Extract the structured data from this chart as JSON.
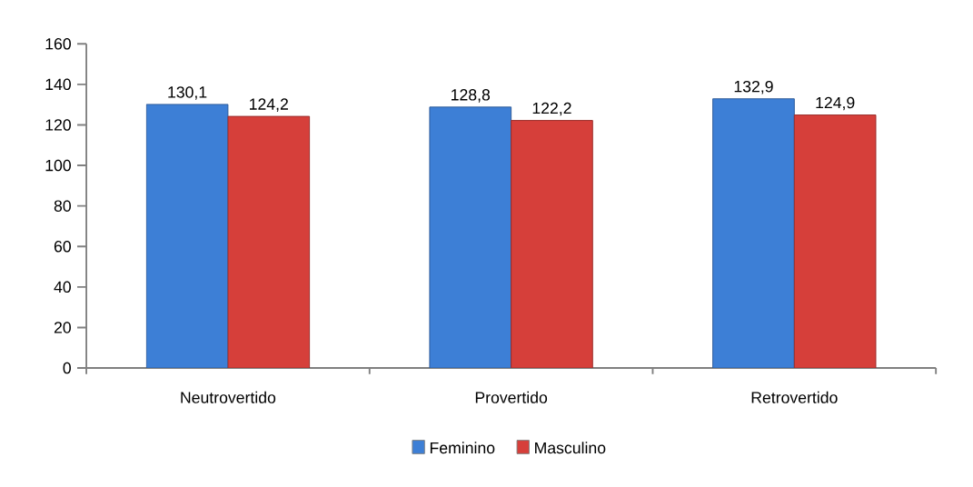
{
  "chart_data": {
    "type": "bar",
    "categories": [
      "Neutrovertido",
      "Provertido",
      "Retrovertido"
    ],
    "series": [
      {
        "name": "Feminino",
        "color": "#3d7fd6",
        "values": [
          130.1,
          128.8,
          132.9
        ],
        "value_labels": [
          "130,1",
          "128,8",
          "132,9"
        ]
      },
      {
        "name": "Masculino",
        "color": "#d63f3a",
        "values": [
          124.2,
          122.2,
          124.9
        ],
        "value_labels": [
          "124,2",
          "122,2",
          "124,9"
        ]
      }
    ],
    "ylim": [
      0,
      160
    ],
    "yticks": [
      0,
      20,
      40,
      60,
      80,
      100,
      120,
      140,
      160
    ],
    "grid": false,
    "legend": "bottom"
  }
}
